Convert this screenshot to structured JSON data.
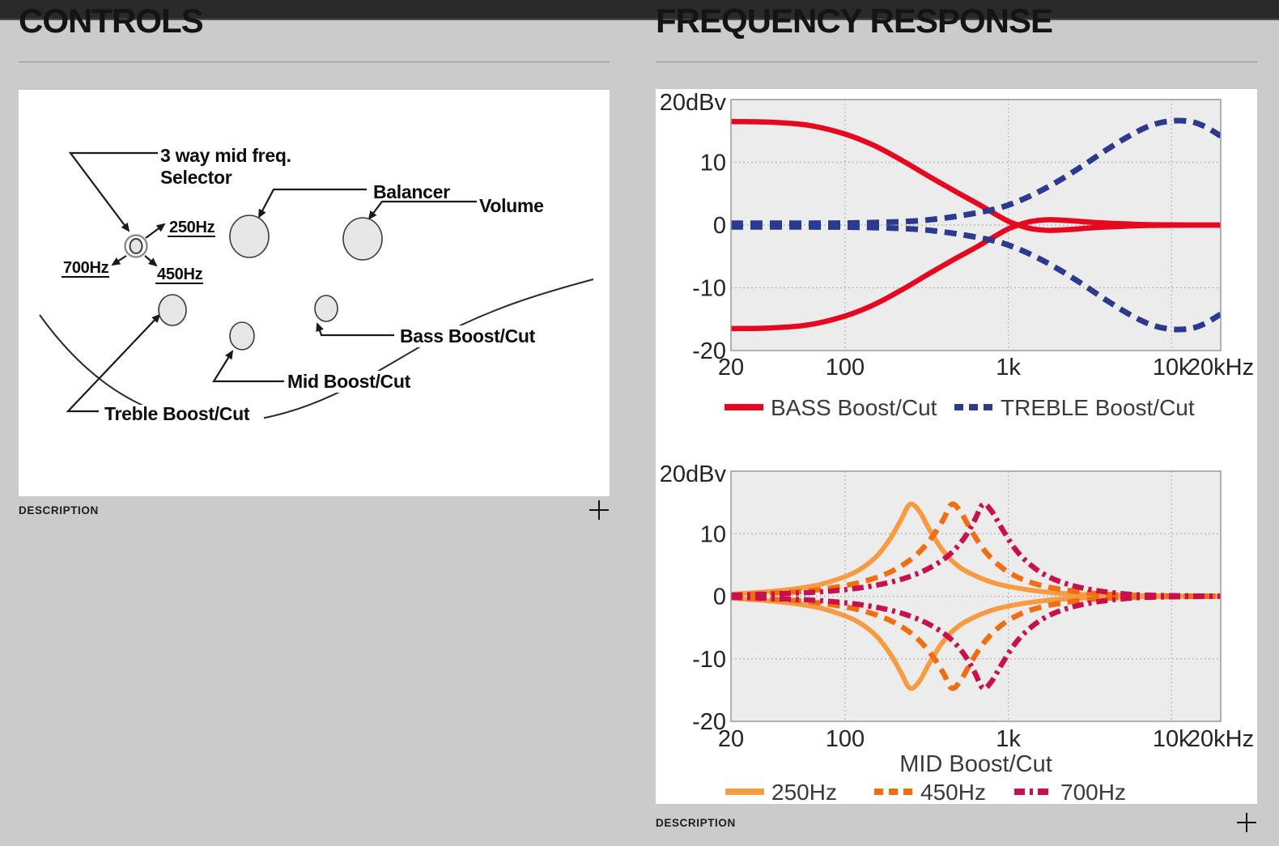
{
  "page": {
    "background": "#cbcbcb",
    "topbar_color": "#2a2a2a",
    "panel_color": "#ffffff"
  },
  "left_section": {
    "title": "CONTROLS",
    "description": {
      "label": "DESCRIPTION",
      "icon": "plus-icon"
    },
    "diagram": {
      "selector_callout": [
        "3 way mid freq.",
        "Selector"
      ],
      "freq_options": [
        "250Hz",
        "700Hz",
        "450Hz"
      ],
      "knob_labels": {
        "balancer": "Balancer",
        "volume": "Volume",
        "bass": "Bass Boost/Cut",
        "mid": "Mid Boost/Cut",
        "treble": "Treble Boost/Cut"
      }
    }
  },
  "right_section": {
    "title": "FREQUENCY RESPONSE",
    "description": {
      "label": "DESCRIPTION",
      "icon": "plus-icon"
    }
  },
  "chart_data": [
    {
      "type": "line",
      "y_unit_label": "20dBv",
      "x_scale": "log",
      "xlim": [
        20,
        20000
      ],
      "ylim": [
        -20,
        20
      ],
      "ytick_values": [
        10,
        0,
        -10,
        -20
      ],
      "ytick_labels": [
        "10",
        "0",
        "-10",
        "-20"
      ],
      "xtick_values": [
        20,
        100,
        1000,
        10000,
        20000
      ],
      "xtick_labels": [
        "20",
        "100",
        "1k",
        "10k",
        "20kHz"
      ],
      "grid_x_values": [
        100,
        1000,
        10000
      ],
      "grid_y_values": [
        10,
        0,
        -10
      ],
      "xlabel": "",
      "legend_position": "bottom",
      "legend": [
        {
          "label": "BASS Boost/Cut",
          "color": "#e5081e",
          "style": "solid"
        },
        {
          "label": "TREBLE Boost/Cut",
          "color": "#2b3a8e",
          "style": "dashed"
        }
      ],
      "series": [
        {
          "name": "BASS Boost",
          "color": "#e5081e",
          "style": "solid",
          "width": 6.5,
          "points": [
            [
              20,
              16.5
            ],
            [
              35,
              16.4
            ],
            [
              60,
              15.9
            ],
            [
              100,
              14.5
            ],
            [
              150,
              12.7
            ],
            [
              220,
              10.4
            ],
            [
              320,
              7.9
            ],
            [
              470,
              5.4
            ],
            [
              650,
              3.4
            ],
            [
              850,
              1.6
            ],
            [
              1000,
              0.6
            ],
            [
              1150,
              0
            ],
            [
              1400,
              -0.6
            ],
            [
              1800,
              -0.85
            ],
            [
              2400,
              -0.7
            ],
            [
              3200,
              -0.45
            ],
            [
              5000,
              -0.2
            ],
            [
              8000,
              -0.05
            ],
            [
              20000,
              0
            ]
          ]
        },
        {
          "name": "BASS Cut",
          "color": "#e5081e",
          "style": "solid",
          "width": 6.5,
          "points": [
            [
              20,
              -16.5
            ],
            [
              35,
              -16.4
            ],
            [
              60,
              -15.9
            ],
            [
              100,
              -14.5
            ],
            [
              150,
              -12.7
            ],
            [
              220,
              -10.4
            ],
            [
              320,
              -7.9
            ],
            [
              470,
              -5.4
            ],
            [
              650,
              -3.4
            ],
            [
              850,
              -1.6
            ],
            [
              1000,
              -0.6
            ],
            [
              1150,
              0
            ],
            [
              1400,
              0.6
            ],
            [
              1800,
              0.85
            ],
            [
              2400,
              0.7
            ],
            [
              3200,
              0.45
            ],
            [
              5000,
              0.2
            ],
            [
              8000,
              0.05
            ],
            [
              20000,
              0
            ]
          ]
        },
        {
          "name": "TREBLE Boost",
          "color": "#2b3a8e",
          "style": "dashed",
          "width": 7,
          "points": [
            [
              20,
              0.3
            ],
            [
              60,
              0.3
            ],
            [
              120,
              0.35
            ],
            [
              250,
              0.6
            ],
            [
              400,
              1.1
            ],
            [
              600,
              1.8
            ],
            [
              900,
              2.8
            ],
            [
              1300,
              4.4
            ],
            [
              1900,
              6.6
            ],
            [
              2800,
              9.3
            ],
            [
              4000,
              12
            ],
            [
              5500,
              14.2
            ],
            [
              7500,
              15.9
            ],
            [
              10000,
              16.6
            ],
            [
              13000,
              16.5
            ],
            [
              16000,
              15.7
            ],
            [
              20000,
              14.2
            ]
          ]
        },
        {
          "name": "TREBLE Cut",
          "color": "#2b3a8e",
          "style": "dashed",
          "width": 7,
          "points": [
            [
              20,
              -0.3
            ],
            [
              60,
              -0.3
            ],
            [
              120,
              -0.35
            ],
            [
              250,
              -0.6
            ],
            [
              400,
              -1.1
            ],
            [
              600,
              -1.8
            ],
            [
              900,
              -2.8
            ],
            [
              1300,
              -4.4
            ],
            [
              1900,
              -6.6
            ],
            [
              2800,
              -9.3
            ],
            [
              4000,
              -12
            ],
            [
              5500,
              -14.2
            ],
            [
              7500,
              -15.9
            ],
            [
              10000,
              -16.6
            ],
            [
              13000,
              -16.5
            ],
            [
              16000,
              -15.7
            ],
            [
              20000,
              -14.2
            ]
          ]
        }
      ]
    },
    {
      "type": "line",
      "y_unit_label": "20dBv",
      "x_scale": "log",
      "xlim": [
        20,
        20000
      ],
      "ylim": [
        -20,
        20
      ],
      "ytick_values": [
        10,
        0,
        -10,
        -20
      ],
      "ytick_labels": [
        "10",
        "0",
        "-10",
        "-20"
      ],
      "xtick_values": [
        20,
        100,
        1000,
        10000,
        20000
      ],
      "xtick_labels": [
        "20",
        "100",
        "1k",
        "10k",
        "20kHz"
      ],
      "grid_x_values": [
        100,
        1000,
        10000
      ],
      "grid_y_values": [
        10,
        0,
        -10
      ],
      "xlabel": "MID Boost/Cut",
      "legend_position": "bottom",
      "legend": [
        {
          "label": "250Hz",
          "color": "#f79b43",
          "style": "solid"
        },
        {
          "label": "450Hz",
          "color": "#ef6e11",
          "style": "dashed"
        },
        {
          "label": "700Hz",
          "color": "#c8104a",
          "style": "dashdot"
        }
      ],
      "series": [
        {
          "name": "250Hz Boost",
          "color": "#f79b43",
          "style": "solid",
          "width": 6,
          "points": [
            [
              20,
              0.3
            ],
            [
              40,
              0.9
            ],
            [
              65,
              1.7
            ],
            [
              90,
              2.7
            ],
            [
              120,
              4.1
            ],
            [
              155,
              6.3
            ],
            [
              190,
              9.3
            ],
            [
              220,
              12.2
            ],
            [
              250,
              14.7
            ],
            [
              285,
              13.6
            ],
            [
              330,
              10.6
            ],
            [
              400,
              7.2
            ],
            [
              500,
              4.7
            ],
            [
              650,
              3.1
            ],
            [
              850,
              2.0
            ],
            [
              1200,
              1.2
            ],
            [
              1800,
              0.6
            ],
            [
              2800,
              0.3
            ],
            [
              4500,
              0.12
            ],
            [
              8000,
              0.04
            ],
            [
              20000,
              0
            ]
          ]
        },
        {
          "name": "250Hz Cut",
          "color": "#f79b43",
          "style": "solid",
          "width": 6,
          "points": [
            [
              20,
              -0.3
            ],
            [
              40,
              -0.9
            ],
            [
              65,
              -1.7
            ],
            [
              90,
              -2.7
            ],
            [
              120,
              -4.1
            ],
            [
              155,
              -6.3
            ],
            [
              190,
              -9.3
            ],
            [
              220,
              -12.2
            ],
            [
              250,
              -14.7
            ],
            [
              285,
              -13.6
            ],
            [
              330,
              -10.6
            ],
            [
              400,
              -7.2
            ],
            [
              500,
              -4.7
            ],
            [
              650,
              -3.1
            ],
            [
              850,
              -2.0
            ],
            [
              1200,
              -1.2
            ],
            [
              1800,
              -0.6
            ],
            [
              2800,
              -0.3
            ],
            [
              4500,
              -0.12
            ],
            [
              8000,
              -0.04
            ],
            [
              20000,
              0
            ]
          ]
        },
        {
          "name": "450Hz Boost",
          "color": "#ef6e11",
          "style": "dashed",
          "width": 6.5,
          "points": [
            [
              20,
              0.2
            ],
            [
              50,
              0.7
            ],
            [
              90,
              1.5
            ],
            [
              140,
              2.6
            ],
            [
              200,
              4.2
            ],
            [
              270,
              6.5
            ],
            [
              340,
              9.4
            ],
            [
              400,
              12.3
            ],
            [
              450,
              14.7
            ],
            [
              510,
              13.5
            ],
            [
              590,
              10.6
            ],
            [
              720,
              7.2
            ],
            [
              900,
              4.7
            ],
            [
              1150,
              3.0
            ],
            [
              1500,
              1.9
            ],
            [
              2100,
              1.1
            ],
            [
              3200,
              0.5
            ],
            [
              5000,
              0.2
            ],
            [
              9000,
              0.06
            ],
            [
              20000,
              0
            ]
          ]
        },
        {
          "name": "450Hz Cut",
          "color": "#ef6e11",
          "style": "dashed",
          "width": 6.5,
          "points": [
            [
              20,
              -0.2
            ],
            [
              50,
              -0.7
            ],
            [
              90,
              -1.5
            ],
            [
              140,
              -2.6
            ],
            [
              200,
              -4.2
            ],
            [
              270,
              -6.5
            ],
            [
              340,
              -9.4
            ],
            [
              400,
              -12.3
            ],
            [
              450,
              -14.7
            ],
            [
              510,
              -13.5
            ],
            [
              590,
              -10.6
            ],
            [
              720,
              -7.2
            ],
            [
              900,
              -4.7
            ],
            [
              1150,
              -3.0
            ],
            [
              1500,
              -1.9
            ],
            [
              2100,
              -1.1
            ],
            [
              3200,
              -0.5
            ],
            [
              5000,
              -0.2
            ],
            [
              9000,
              -0.06
            ],
            [
              20000,
              0
            ]
          ]
        },
        {
          "name": "700Hz Boost",
          "color": "#c8104a",
          "style": "dashdot",
          "width": 6.5,
          "points": [
            [
              20,
              0.15
            ],
            [
              60,
              0.6
            ],
            [
              120,
              1.3
            ],
            [
              200,
              2.4
            ],
            [
              300,
              4.0
            ],
            [
              420,
              6.3
            ],
            [
              530,
              9.1
            ],
            [
              620,
              12.1
            ],
            [
              700,
              14.7
            ],
            [
              790,
              13.6
            ],
            [
              920,
              10.7
            ],
            [
              1120,
              7.3
            ],
            [
              1400,
              4.8
            ],
            [
              1800,
              3.0
            ],
            [
              2400,
              1.8
            ],
            [
              3300,
              1.0
            ],
            [
              4800,
              0.45
            ],
            [
              7500,
              0.15
            ],
            [
              20000,
              0
            ]
          ]
        },
        {
          "name": "700Hz Cut",
          "color": "#c8104a",
          "style": "dashdot",
          "width": 6.5,
          "points": [
            [
              20,
              -0.15
            ],
            [
              60,
              -0.6
            ],
            [
              120,
              -1.3
            ],
            [
              200,
              -2.4
            ],
            [
              300,
              -4.0
            ],
            [
              420,
              -6.3
            ],
            [
              530,
              -9.1
            ],
            [
              620,
              -12.1
            ],
            [
              700,
              -14.7
            ],
            [
              790,
              -13.6
            ],
            [
              920,
              -10.7
            ],
            [
              1120,
              -7.3
            ],
            [
              1400,
              -4.8
            ],
            [
              1800,
              -3.0
            ],
            [
              2400,
              -1.8
            ],
            [
              3300,
              -1.0
            ],
            [
              4800,
              -0.45
            ],
            [
              7500,
              -0.15
            ],
            [
              20000,
              0
            ]
          ]
        }
      ]
    }
  ]
}
